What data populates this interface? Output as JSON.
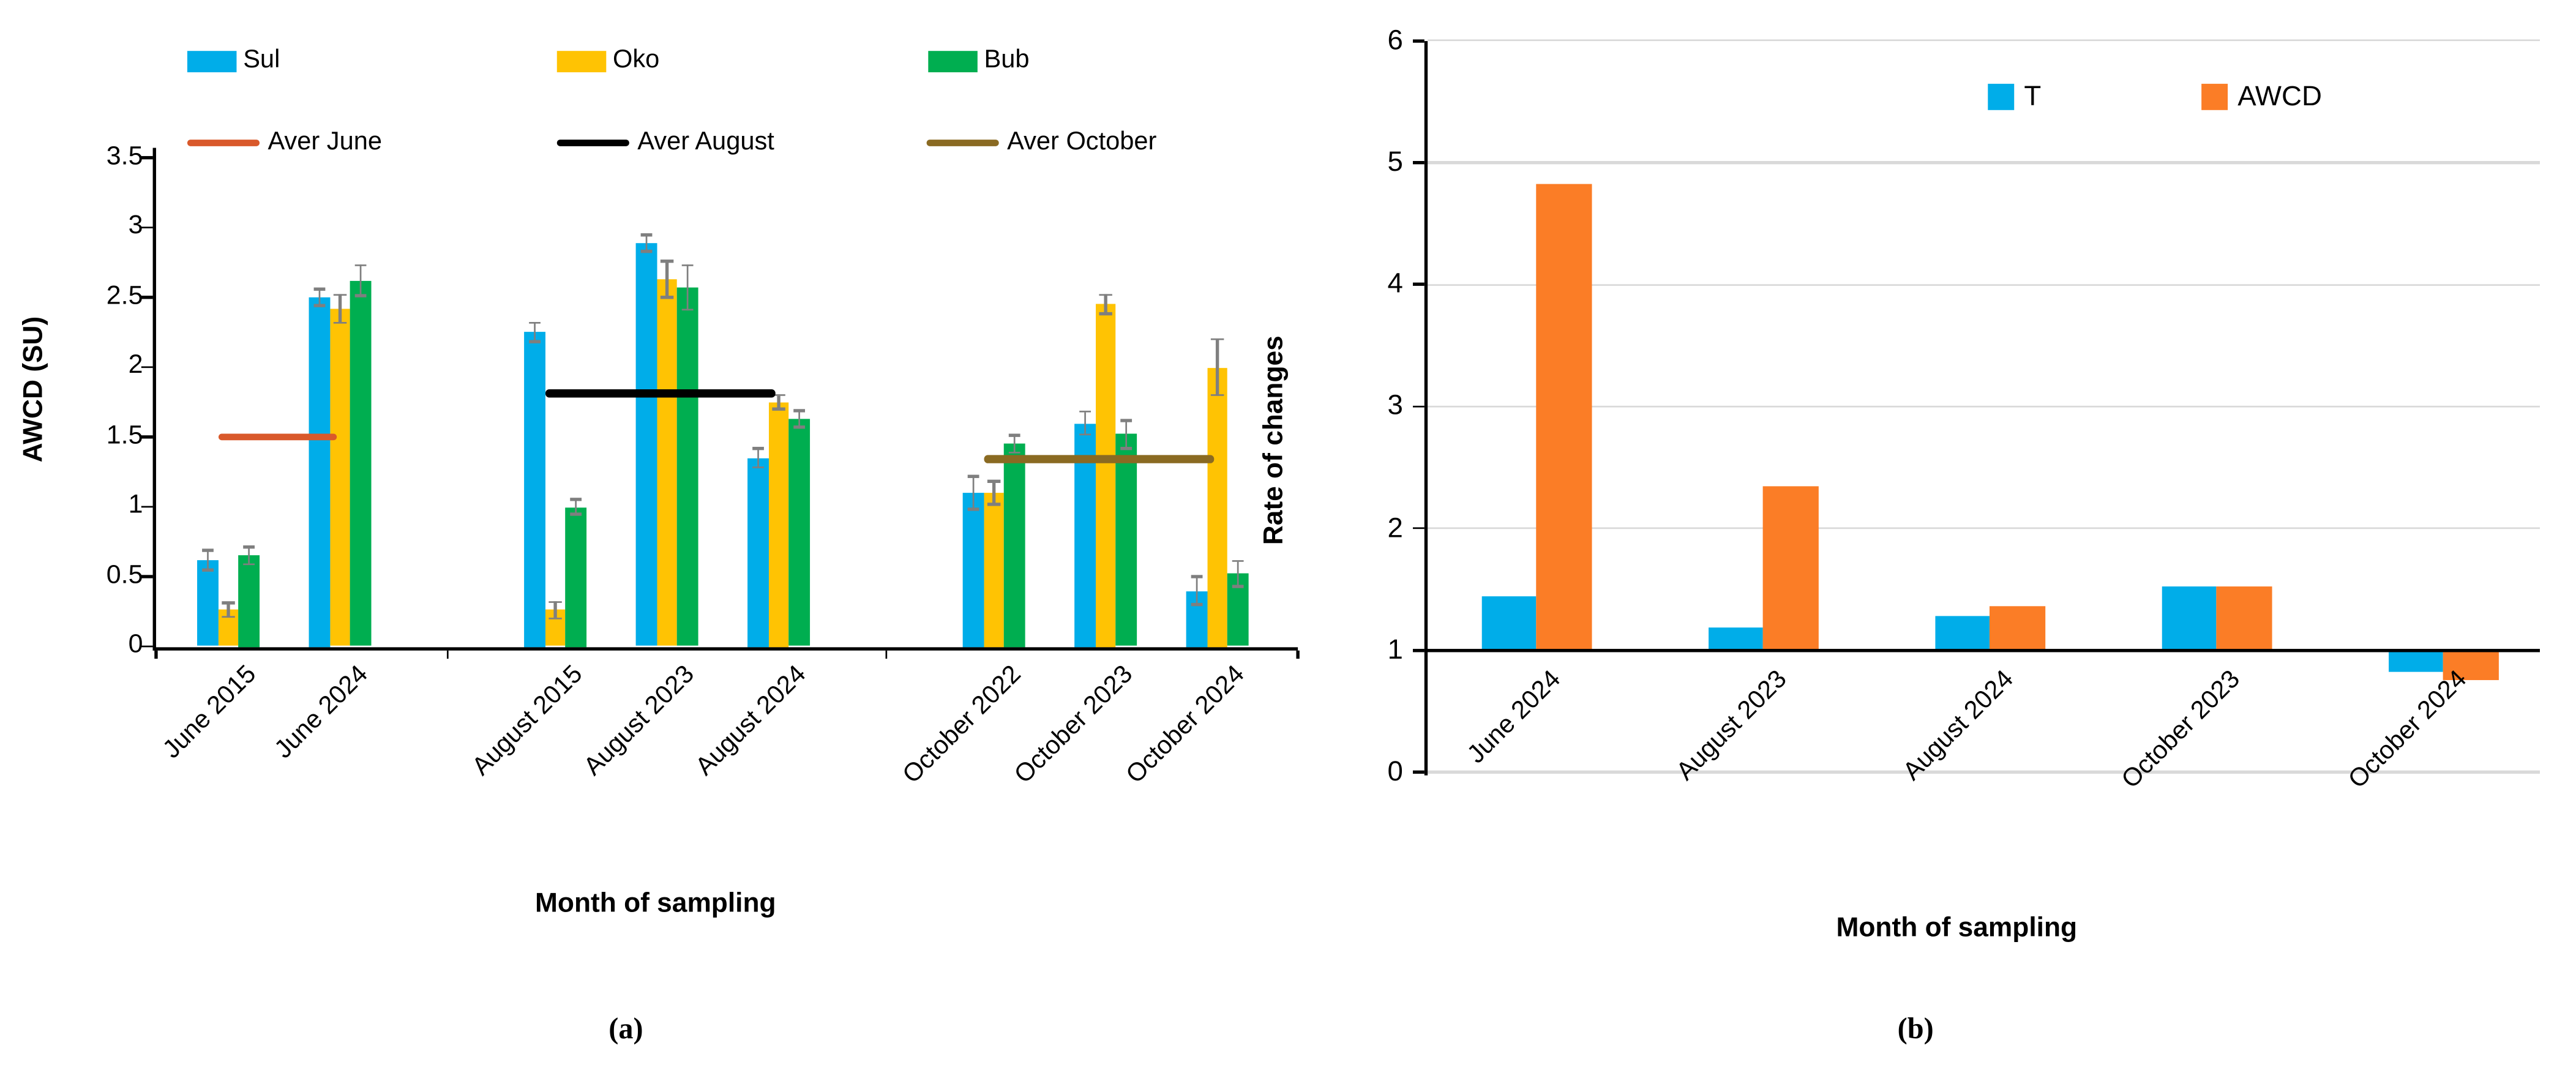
{
  "captions": {
    "a": "(a)",
    "b": "(b)"
  },
  "chart_data": [
    {
      "id": "a",
      "type": "bar",
      "xlabel": "Month of sampling",
      "ylabel": "AWCD (SU)",
      "ylim": [
        0,
        3.5
      ],
      "ytick_step": 0.5,
      "ytick_labels": [
        "0",
        "0.5",
        "1",
        "1.5",
        "2",
        "2.5",
        "3",
        "3.5"
      ],
      "gridlines": false,
      "legend_position": "top",
      "error_bar_color": "#7F7F7F",
      "categories": [
        "June 2015",
        "June 2024",
        "August 2015",
        "August 2023",
        "August 2024",
        "October 2022",
        "October 2023",
        "October 2024"
      ],
      "series": [
        {
          "name": "Sul",
          "color": "#00ADE9",
          "values": [
            0.62,
            2.5,
            2.25,
            2.89,
            1.35,
            1.1,
            1.6,
            0.4
          ],
          "errors": [
            0.07,
            0.06,
            0.07,
            0.06,
            0.07,
            0.12,
            0.08,
            0.1
          ]
        },
        {
          "name": "Oko",
          "color": "#FFC303",
          "values": [
            0.26,
            2.42,
            0.26,
            2.63,
            1.75,
            1.1,
            2.45,
            2.0
          ],
          "errors": [
            0.05,
            0.1,
            0.06,
            0.13,
            0.05,
            0.08,
            0.07,
            0.2
          ]
        },
        {
          "name": "Bub",
          "color": "#00AE50",
          "values": [
            0.65,
            2.62,
            1.0,
            2.57,
            1.63,
            1.45,
            1.52,
            0.52
          ],
          "errors": [
            0.06,
            0.11,
            0.05,
            0.16,
            0.06,
            0.06,
            0.1,
            0.09
          ]
        }
      ],
      "average_lines": [
        {
          "name": "Aver June",
          "color": "#D9592B",
          "value": 1.5,
          "span": [
            "June 2015",
            "June 2024"
          ]
        },
        {
          "name": "Aver August",
          "color": "#000000",
          "value": 1.81,
          "span": [
            "August 2015",
            "August 2024"
          ]
        },
        {
          "name": "Aver October",
          "color": "#8A6A22",
          "value": 1.34,
          "span": [
            "October 2022",
            "October 2024"
          ]
        }
      ]
    },
    {
      "id": "b",
      "type": "bar",
      "xlabel": "Month of sampling",
      "ylabel": "Rate of changes",
      "ylim": [
        0,
        6
      ],
      "ytick_step": 1,
      "ytick_labels": [
        "0",
        "1",
        "2",
        "3",
        "4",
        "5",
        "6"
      ],
      "axis_crosses_at": 1,
      "gridlines": true,
      "gridline_color": "#D9D9D9",
      "legend_position": "top-right",
      "categories": [
        "June 2024",
        "August 2023",
        "August 2024",
        "October 2023",
        "October 2024"
      ],
      "series": [
        {
          "name": "T",
          "color": "#00ADE9",
          "values": [
            1.44,
            1.18,
            1.28,
            1.52,
            0.82
          ]
        },
        {
          "name": "AWCD",
          "color": "#FB7D26",
          "values": [
            4.82,
            2.34,
            1.36,
            1.52,
            0.76
          ]
        }
      ]
    }
  ]
}
